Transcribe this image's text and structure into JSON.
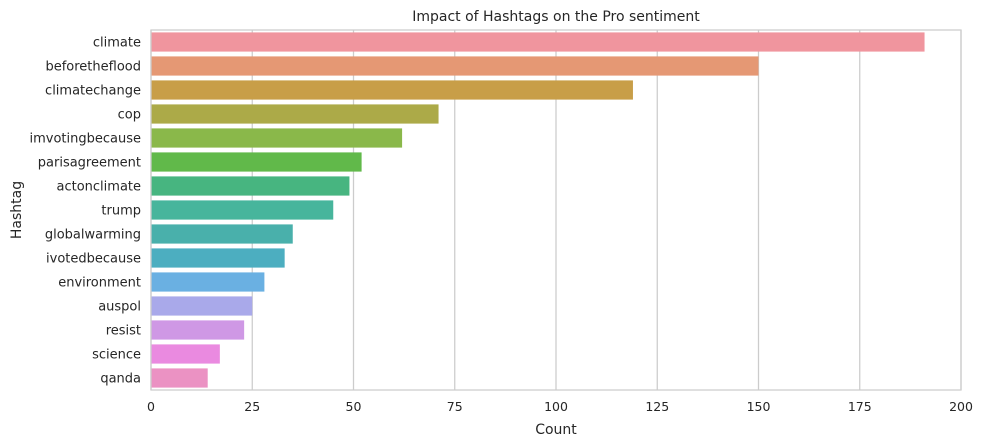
{
  "chart_data": {
    "type": "bar",
    "orientation": "horizontal",
    "title": "Impact of Hashtags on the Pro sentiment",
    "xlabel": "Count",
    "ylabel": "Hashtag",
    "xlim": [
      0,
      200
    ],
    "xticks": [
      "0",
      "25",
      "50",
      "75",
      "100",
      "125",
      "150",
      "175",
      "200"
    ],
    "grid": true,
    "categories": [
      "climate",
      "beforetheflood",
      "climatechange",
      "cop",
      "imvotingbecause",
      "parisagreement",
      "actonclimate",
      "trump",
      "globalwarming",
      "ivotedbecause",
      "environment",
      "auspol",
      "resist",
      "science",
      "qanda"
    ],
    "values": [
      191,
      150,
      119,
      71,
      62,
      52,
      49,
      45,
      35,
      33,
      28,
      25,
      23,
      17,
      14
    ],
    "colors": [
      "#f0959e",
      "#e59874",
      "#c89e48",
      "#acaa48",
      "#8ab84a",
      "#61b94a",
      "#47b580",
      "#47b59c",
      "#49b0ab",
      "#4caec0",
      "#6ab0e2",
      "#a9a9ea",
      "#cf98e5",
      "#ea8ae0",
      "#eb92c3"
    ]
  }
}
